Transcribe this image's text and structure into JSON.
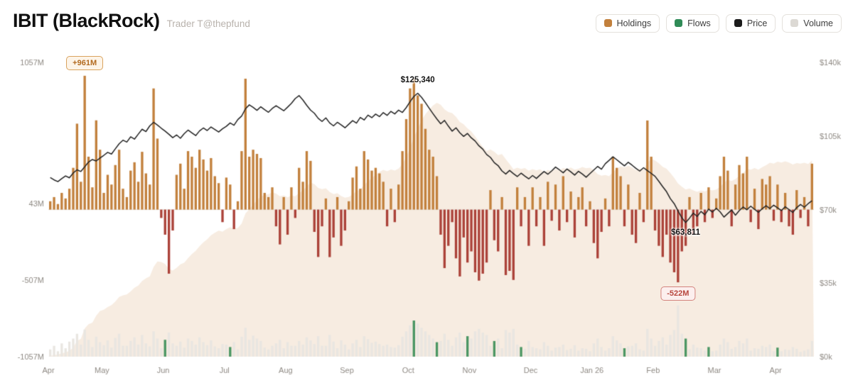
{
  "header": {
    "title": "IBIT (BlackRock)",
    "subtitle": "Trader T@thepfund"
  },
  "legend": {
    "items": [
      {
        "id": "holdings",
        "label": "Holdings",
        "color": "#c2803c"
      },
      {
        "id": "flows",
        "label": "Flows",
        "color": "#2f8b57"
      },
      {
        "id": "price",
        "label": "Price",
        "color": "#1b1b1b"
      },
      {
        "id": "volume",
        "label": "Volume",
        "color": "#dcd9d4"
      }
    ]
  },
  "chart_data": {
    "type": "combo",
    "title": "IBIT (BlackRock) daily flows, price, holdings and volume",
    "months": [
      {
        "label": "Apr",
        "count": 14
      },
      {
        "label": "May",
        "count": 16
      },
      {
        "label": "Jun",
        "count": 16
      },
      {
        "label": "Jul",
        "count": 16
      },
      {
        "label": "Aug",
        "count": 16
      },
      {
        "label": "Sep",
        "count": 16
      },
      {
        "label": "Oct",
        "count": 16
      },
      {
        "label": "Nov",
        "count": 16
      },
      {
        "label": "Dec",
        "count": 16
      },
      {
        "label": "Jan 26",
        "count": 16
      },
      {
        "label": "Feb",
        "count": 16
      },
      {
        "label": "Mar",
        "count": 16
      },
      {
        "label": "Apr",
        "count": 10
      }
    ],
    "left_axis": {
      "unit": "M USD",
      "ticks": [
        1057,
        43,
        -507,
        -1057
      ],
      "labels": [
        "1057M",
        "43M",
        "-507M",
        "-1057M"
      ]
    },
    "right_axis": {
      "unit": "$k",
      "ticks": [
        140,
        105,
        70,
        35,
        0
      ],
      "labels": [
        "$140k",
        "$105k",
        "$70k",
        "$35k",
        "$0k"
      ]
    },
    "series": [
      {
        "name": "Flows",
        "type": "bar",
        "unit": "$M",
        "positive_color": "#c2803c",
        "negative_color": "#ab4138",
        "values": [
          60,
          90,
          40,
          120,
          80,
          150,
          300,
          617,
          200,
          961,
          380,
          160,
          641,
          430,
          120,
          250,
          180,
          320,
          430,
          150,
          90,
          280,
          340,
          200,
          415,
          260,
          180,
          870,
          510,
          -60,
          -180,
          -460,
          -150,
          250,
          330,
          150,
          420,
          380,
          300,
          430,
          360,
          280,
          370,
          240,
          190,
          -90,
          230,
          180,
          -140,
          60,
          420,
          940,
          380,
          430,
          400,
          370,
          120,
          90,
          160,
          -120,
          -250,
          90,
          -180,
          160,
          -60,
          300,
          200,
          420,
          350,
          -160,
          -340,
          -120,
          80,
          -341,
          -200,
          90,
          -260,
          -150,
          60,
          230,
          310,
          150,
          420,
          360,
          280,
          300,
          260,
          200,
          -120,
          150,
          -90,
          180,
          420,
          650,
          870,
          940,
          820,
          760,
          580,
          430,
          380,
          240,
          -180,
          -420,
          -260,
          -90,
          -350,
          -480,
          -200,
          -380,
          -300,
          -450,
          -510,
          -460,
          -380,
          140,
          -220,
          -300,
          90,
          -470,
          -440,
          -505,
          160,
          -120,
          90,
          -260,
          160,
          -120,
          90,
          -260,
          200,
          -80,
          180,
          -150,
          240,
          -90,
          130,
          -200,
          90,
          160,
          -120,
          60,
          -240,
          -350,
          -160,
          80,
          -120,
          380,
          300,
          240,
          -120,
          180,
          -180,
          -240,
          120,
          -90,
          640,
          380,
          -150,
          -260,
          -340,
          -180,
          -380,
          -450,
          -522,
          -300,
          -260,
          90,
          -180,
          -120,
          120,
          -90,
          160,
          -60,
          80,
          240,
          380,
          280,
          -120,
          180,
          320,
          260,
          380,
          -90,
          150,
          -140,
          220,
          180,
          240,
          -80,
          180,
          -90,
          120,
          -120,
          -180,
          140,
          -60,
          90,
          -120,
          330
        ]
      },
      {
        "name": "Price",
        "type": "line",
        "unit": "$k",
        "color": "#222222",
        "values": [
          85.2,
          84.1,
          83.3,
          84.7,
          86.0,
          85.1,
          87.4,
          88.9,
          88.1,
          90.3,
          92.6,
          93.8,
          93.1,
          94.5,
          95.8,
          97.2,
          96.4,
          98.9,
          101.3,
          103.0,
          102.1,
          104.6,
          103.5,
          105.9,
          108.2,
          107.1,
          109.8,
          111.5,
          110.2,
          108.7,
          107.3,
          105.8,
          104.2,
          105.5,
          103.9,
          106.1,
          107.8,
          106.5,
          105.2,
          107.4,
          108.8,
          107.6,
          109.3,
          108.1,
          106.9,
          108.4,
          109.6,
          111.2,
          110.1,
          112.8,
          114.5,
          117.9,
          119.8,
          118.6,
          117.2,
          118.9,
          117.5,
          116.3,
          118.1,
          119.4,
          118.2,
          117.0,
          118.7,
          120.5,
          122.8,
          124.2,
          122.1,
          119.6,
          117.3,
          115.8,
          113.4,
          111.9,
          113.6,
          111.2,
          109.8,
          111.5,
          110.3,
          108.9,
          110.6,
          112.3,
          111.1,
          113.8,
          112.6,
          114.9,
          113.7,
          115.4,
          114.2,
          116.1,
          114.8,
          116.7,
          115.5,
          117.3,
          116.2,
          118.5,
          121.3,
          123.8,
          125.34,
          123.4,
          120.9,
          118.2,
          115.6,
          113.1,
          110.8,
          112.4,
          109.7,
          107.3,
          108.9,
          106.5,
          104.8,
          106.2,
          104.1,
          102.6,
          100.3,
          98.7,
          96.2,
          94.8,
          92.3,
          90.9,
          88.4,
          86.9,
          88.6,
          87.1,
          85.7,
          87.3,
          85.9,
          84.6,
          86.2,
          84.8,
          86.5,
          88.1,
          86.8,
          88.4,
          90.2,
          88.9,
          87.5,
          89.3,
          87.9,
          86.4,
          88.2,
          86.9,
          85.4,
          87.1,
          88.8,
          90.5,
          89.2,
          91.8,
          93.4,
          95.1,
          93.7,
          92.2,
          90.8,
          92.5,
          91.1,
          89.6,
          88.3,
          89.9,
          88.5,
          87.2,
          85.8,
          83.4,
          80.9,
          78.5,
          75.2,
          72.8,
          69.4,
          66.1,
          63.811,
          65.9,
          68.3,
          66.7,
          69.1,
          67.5,
          70.2,
          68.8,
          70.6,
          68.9,
          66.4,
          68.1,
          69.8,
          67.3,
          69.5,
          71.2,
          69.9,
          71.6,
          70.1,
          68.7,
          70.4,
          71.8,
          70.5,
          72.1,
          70.8,
          69.5,
          71.3,
          70.0,
          68.6,
          70.9,
          72.4,
          71.1,
          72.8,
          74.2
        ]
      },
      {
        "name": "Volume",
        "type": "bar",
        "unit": "relative",
        "color": "#e9e6e1",
        "green_color": "#4a9663",
        "green_indices": [
          30,
          47,
          95,
          101,
          109,
          116,
          123,
          150,
          166,
          172,
          190
        ],
        "values": [
          12,
          18,
          9,
          22,
          14,
          25,
          30,
          38,
          20,
          45,
          28,
          16,
          33,
          24,
          19,
          27,
          15,
          31,
          38,
          18,
          18,
          26,
          32,
          20,
          36,
          22,
          17,
          42,
          30,
          14,
          28,
          40,
          22,
          18,
          25,
          15,
          30,
          26,
          20,
          32,
          24,
          19,
          27,
          17,
          14,
          21,
          20,
          16,
          24,
          12,
          33,
          48,
          28,
          35,
          30,
          26,
          15,
          12,
          18,
          22,
          28,
          14,
          24,
          18,
          18,
          26,
          20,
          32,
          27,
          21,
          34,
          18,
          18,
          36,
          25,
          14,
          27,
          20,
          12,
          22,
          28,
          16,
          34,
          29,
          23,
          25,
          21,
          18,
          20,
          16,
          15,
          19,
          33,
          42,
          52,
          60,
          55,
          48,
          42,
          36,
          30,
          24,
          26,
          38,
          28,
          18,
          32,
          40,
          24,
          34,
          30,
          42,
          46,
          40,
          36,
          18,
          26,
          30,
          14,
          44,
          40,
          46,
          20,
          16,
          13,
          26,
          16,
          14,
          12,
          24,
          18,
          10,
          15,
          16,
          20,
          11,
          13,
          19,
          10,
          14,
          13,
          9,
          22,
          30,
          16,
          10,
          14,
          34,
          27,
          22,
          14,
          17,
          18,
          22,
          12,
          10,
          46,
          30,
          18,
          26,
          32,
          20,
          36,
          44,
          85,
          38,
          30,
          12,
          20,
          15,
          14,
          10,
          16,
          9,
          10,
          20,
          30,
          24,
          13,
          16,
          26,
          22,
          30,
          10,
          14,
          13,
          18,
          16,
          20,
          9,
          15,
          9,
          12,
          11,
          16,
          13,
          8,
          10,
          12,
          26
        ]
      },
      {
        "name": "Holdings",
        "type": "area",
        "derivation": "cumulative sum of Flows",
        "color": "#f7ece1"
      }
    ],
    "annotations": {
      "max_inflow": {
        "text": "+961M",
        "index": 9
      },
      "max_outflow": {
        "text": "-522M",
        "index": 164
      },
      "price_high": {
        "text": "$125,340",
        "index": 96
      },
      "price_low": {
        "text": "$63,811",
        "index": 166
      }
    }
  }
}
